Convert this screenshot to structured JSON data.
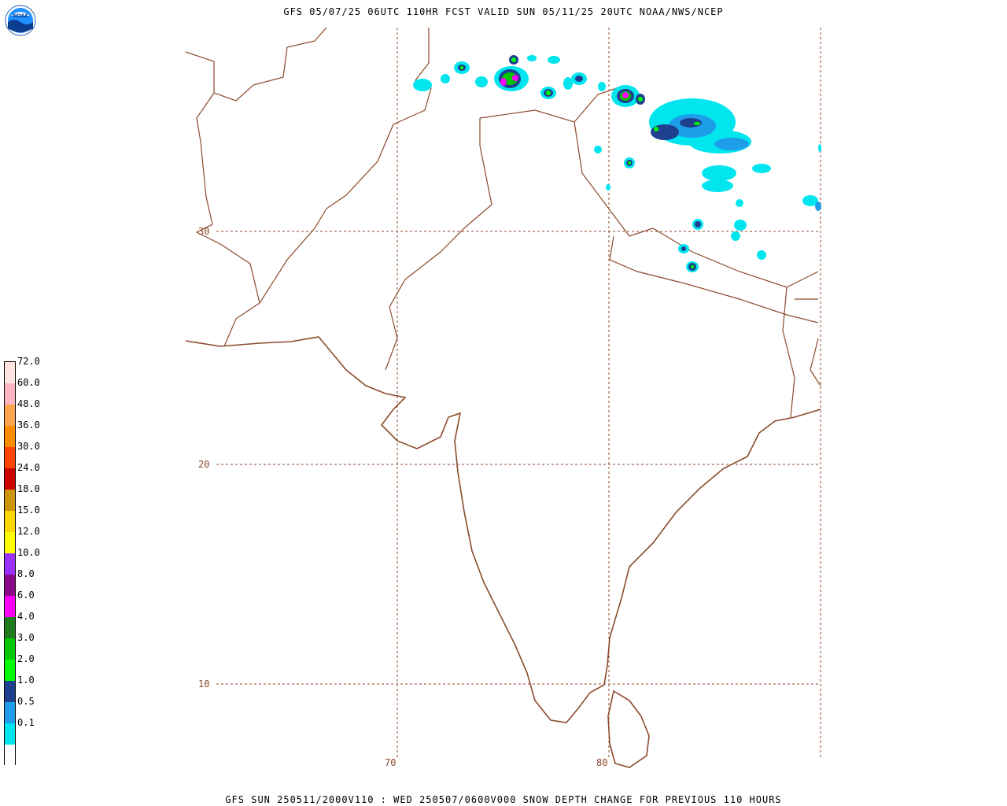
{
  "header": {
    "title": "GFS 05/07/25 06UTC 110HR FCST VALID SUN 05/11/25 20UTC NOAA/NWS/NCEP"
  },
  "footer": {
    "caption": "GFS SUN 250511/2000V110 : WED 250507/0600V000 SNOW DEPTH CHANGE FOR PREVIOUS 110 HOURS"
  },
  "logo": {
    "text": "NOAA"
  },
  "graticule": {
    "lat_labels": [
      "30",
      "20",
      "10"
    ],
    "lon_labels": [
      "70",
      "80"
    ]
  },
  "legend": {
    "items": [
      {
        "label": "",
        "color": "#ffffff"
      },
      {
        "label": "0.1",
        "color": "#00e5ee"
      },
      {
        "label": "0.5",
        "color": "#1e9ee8"
      },
      {
        "label": "1.0",
        "color": "#1f3f8f"
      },
      {
        "label": "2.0",
        "color": "#00ff00"
      },
      {
        "label": "3.0",
        "color": "#00c800"
      },
      {
        "label": "4.0",
        "color": "#1e7b1e"
      },
      {
        "label": "6.0",
        "color": "#ff00ff"
      },
      {
        "label": "8.0",
        "color": "#8b0a8b"
      },
      {
        "label": "10.0",
        "color": "#9b30ff"
      },
      {
        "label": "12.0",
        "color": "#ffff00"
      },
      {
        "label": "15.0",
        "color": "#ffd700"
      },
      {
        "label": "18.0",
        "color": "#cd950c"
      },
      {
        "label": "24.0",
        "color": "#cd0000"
      },
      {
        "label": "30.0",
        "color": "#ff4500"
      },
      {
        "label": "36.0",
        "color": "#ff8c00"
      },
      {
        "label": "48.0",
        "color": "#ffa54f"
      },
      {
        "label": "60.0",
        "color": "#ffb6c1"
      },
      {
        "label": "72.0",
        "color": "#ffe4e1"
      }
    ]
  },
  "colors": {
    "border": "#8b4a2b",
    "grid": "#8b4a2b"
  }
}
